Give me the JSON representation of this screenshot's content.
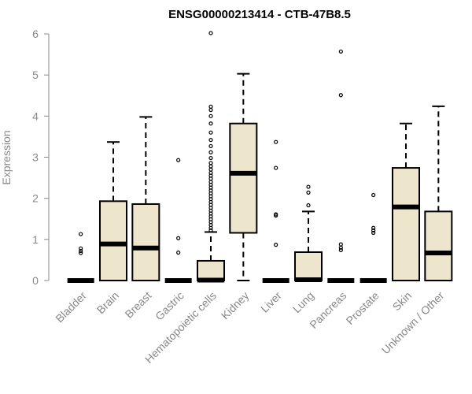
{
  "chart_data": {
    "type": "boxplot",
    "title": "ENSG00000213414 - CTB-47B8.5",
    "xlabel": "",
    "ylabel": "Expression",
    "ylim": [
      0,
      6
    ],
    "yticks": [
      0,
      1,
      2,
      3,
      4,
      5,
      6
    ],
    "box_color": "#ede6cc",
    "categories": [
      "Bladder",
      "Brain",
      "Breast",
      "Gastric",
      "Hematopoietic cells",
      "Kidney",
      "Liver",
      "Lung",
      "Pancreas",
      "Prostate",
      "Skin",
      "Unknown / Other"
    ],
    "boxes": [
      {
        "label": "Bladder",
        "min": 0,
        "q1": 0,
        "median": 0,
        "q3": 0,
        "max": 0,
        "outliers": [
          1.13,
          0.78,
          0.72,
          0.67
        ]
      },
      {
        "label": "Brain",
        "min": 0,
        "q1": 0,
        "median": 0.89,
        "q3": 1.93,
        "max": 3.37,
        "outliers": []
      },
      {
        "label": "Breast",
        "min": 0,
        "q1": 0,
        "median": 0.79,
        "q3": 1.86,
        "max": 3.98,
        "outliers": []
      },
      {
        "label": "Gastric",
        "min": 0,
        "q1": 0,
        "median": 0,
        "q3": 0,
        "max": 0,
        "outliers": [
          2.93,
          1.03,
          0.68
        ]
      },
      {
        "label": "Hematopoietic cells",
        "min": 0,
        "q1": 0,
        "median": 0.01,
        "q3": 0.48,
        "max": 1.18,
        "outliers": [
          6.02,
          4.23,
          4.15,
          4.0,
          3.82,
          3.6,
          3.42,
          3.27,
          3.12,
          2.98,
          2.86,
          2.78,
          2.7,
          2.62,
          2.55,
          2.48,
          2.4,
          2.33,
          2.26,
          2.19,
          2.12,
          2.05,
          1.98,
          1.91,
          1.84,
          1.77,
          1.7,
          1.63,
          1.56,
          1.49,
          1.42,
          1.35,
          1.28,
          1.22
        ]
      },
      {
        "label": "Kidney",
        "min": 0,
        "q1": 1.16,
        "median": 2.61,
        "q3": 3.82,
        "max": 5.03,
        "outliers": []
      },
      {
        "label": "Liver",
        "min": 0,
        "q1": 0,
        "median": 0,
        "q3": 0,
        "max": 0,
        "outliers": [
          3.37,
          2.74,
          1.61,
          1.58,
          0.87
        ]
      },
      {
        "label": "Lung",
        "min": 0,
        "q1": 0,
        "median": 0.02,
        "q3": 0.69,
        "max": 1.68,
        "outliers": [
          2.28,
          2.14,
          1.83
        ]
      },
      {
        "label": "Pancreas",
        "min": 0,
        "q1": 0,
        "median": 0,
        "q3": 0,
        "max": 0,
        "outliers": [
          5.57,
          4.51,
          0.88,
          0.8,
          0.74
        ]
      },
      {
        "label": "Prostate",
        "min": 0,
        "q1": 0,
        "median": 0,
        "q3": 0,
        "max": 0,
        "outliers": [
          2.08,
          1.28,
          1.22,
          1.16
        ]
      },
      {
        "label": "Skin",
        "min": 0,
        "q1": 0,
        "median": 1.79,
        "q3": 2.74,
        "max": 3.82,
        "outliers": []
      },
      {
        "label": "Unknown / Other",
        "min": 0,
        "q1": 0,
        "median": 0.67,
        "q3": 1.68,
        "max": 4.24,
        "outliers": []
      }
    ]
  }
}
